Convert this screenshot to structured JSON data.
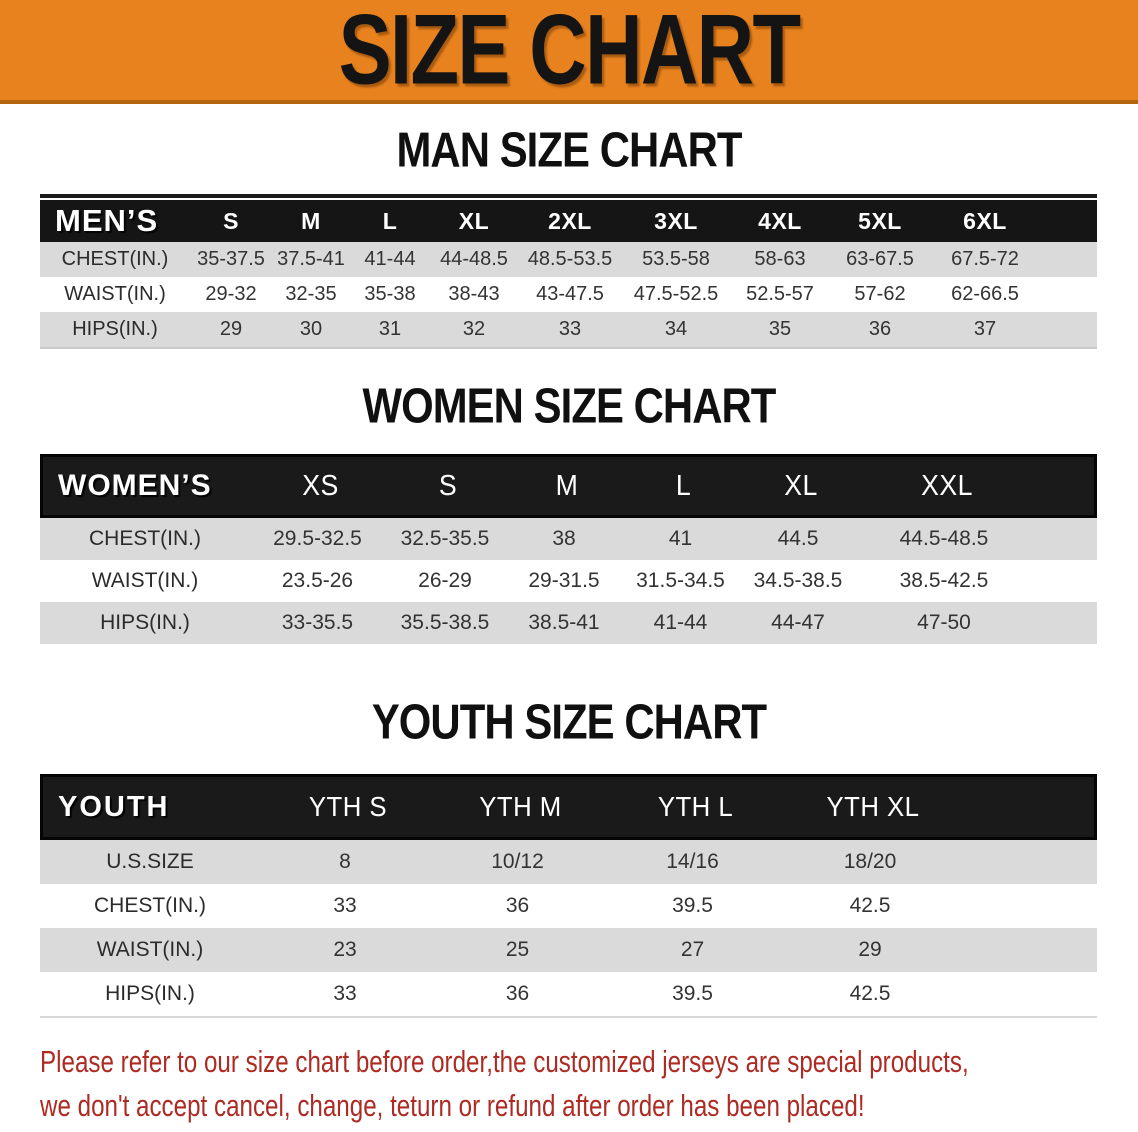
{
  "banner": {
    "title": "SIZE CHART"
  },
  "colors": {
    "banner_bg": "#E8821E",
    "banner_border": "#B4660F",
    "table_header_bg": "#151515",
    "row_gray": "#DADADA",
    "footer_red": "#AE2B24"
  },
  "sections": [
    {
      "heading": "MAN SIZE CHART",
      "table": {
        "group_label": "MEN’S",
        "columns": [
          "S",
          "M",
          "L",
          "XL",
          "2XL",
          "3XL",
          "4XL",
          "5XL",
          "6XL"
        ],
        "rows": [
          {
            "label": "CHEST(IN.)",
            "values": [
              "35-37.5",
              "37.5-41",
              "41-44",
              "44-48.5",
              "48.5-53.5",
              "53.5-58",
              "58-63",
              "63-67.5",
              "67.5-72"
            ]
          },
          {
            "label": "WAIST(IN.)",
            "values": [
              "29-32",
              "32-35",
              "35-38",
              "38-43",
              "43-47.5",
              "47.5-52.5",
              "52.5-57",
              "57-62",
              "62-66.5"
            ]
          },
          {
            "label": "HIPS(IN.)",
            "values": [
              "29",
              "30",
              "31",
              "32",
              "33",
              "34",
              "35",
              "36",
              "37"
            ]
          }
        ]
      }
    },
    {
      "heading": "WOMEN SIZE CHART",
      "table": {
        "group_label": "WOMEN’S",
        "columns": [
          "XS",
          "S",
          "M",
          "L",
          "XL",
          "XXL"
        ],
        "rows": [
          {
            "label": "CHEST(IN.)",
            "values": [
              "29.5-32.5",
              "32.5-35.5",
              "38",
              "41",
              "44.5",
              "44.5-48.5"
            ]
          },
          {
            "label": "WAIST(IN.)",
            "values": [
              "23.5-26",
              "26-29",
              "29-31.5",
              "31.5-34.5",
              "34.5-38.5",
              "38.5-42.5"
            ]
          },
          {
            "label": "HIPS(IN.)",
            "values": [
              "33-35.5",
              "35.5-38.5",
              "38.5-41",
              "41-44",
              "44-47",
              "47-50"
            ]
          }
        ]
      }
    },
    {
      "heading": "YOUTH SIZE CHART",
      "table": {
        "group_label": "YOUTH",
        "columns": [
          "YTH S",
          "YTH M",
          "YTH L",
          "YTH XL"
        ],
        "rows": [
          {
            "label": "U.S.SIZE",
            "values": [
              "8",
              "10/12",
              "14/16",
              "18/20"
            ]
          },
          {
            "label": "CHEST(IN.)",
            "values": [
              "33",
              "36",
              "39.5",
              "42.5"
            ]
          },
          {
            "label": "WAIST(IN.)",
            "values": [
              "23",
              "25",
              "27",
              "29"
            ]
          },
          {
            "label": "HIPS(IN.)",
            "values": [
              "33",
              "36",
              "39.5",
              "42.5"
            ]
          }
        ]
      }
    }
  ],
  "footer": {
    "line1": "Please refer to our size chart before order,the customized jerseys are special products,",
    "line2": "we don't accept cancel, change, teturn or refund after order has been placed!"
  }
}
